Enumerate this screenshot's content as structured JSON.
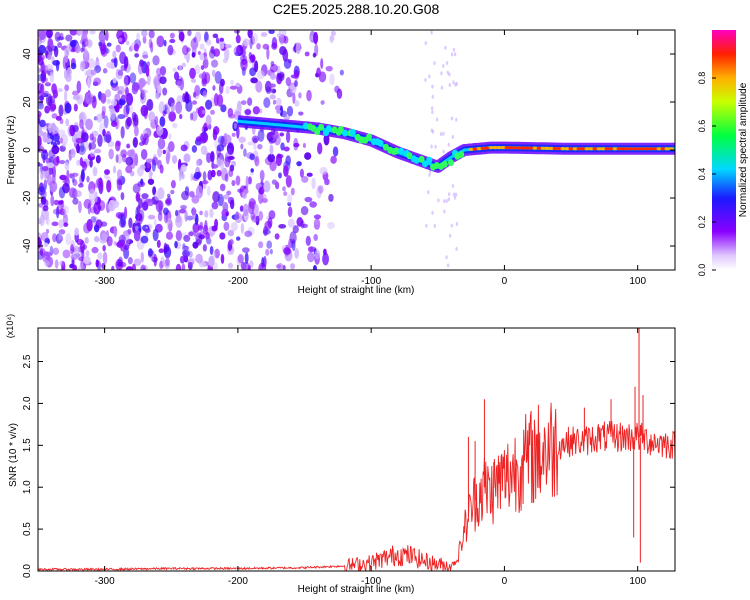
{
  "title": "C2E5.2025.288.10.20.G08",
  "chart_data": [
    {
      "type": "heatmap",
      "xlabel": "Height of straight line (km)",
      "ylabel": "Frequency (Hz)",
      "xlim": [
        -350,
        128
      ],
      "ylim": [
        -50,
        50
      ],
      "xticks": [
        -300,
        -200,
        -100,
        0,
        100
      ],
      "yticks": [
        -40,
        -20,
        0,
        20,
        40
      ],
      "colorbar": {
        "label": "Normalized spectral amplitude",
        "range": [
          0,
          1
        ],
        "ticks": [
          "0.0",
          "0.2",
          "0.4",
          "0.6",
          "0.8"
        ]
      },
      "ridge": {
        "x": [
          -200,
          -160,
          -140,
          -120,
          -100,
          -80,
          -60,
          -50,
          -40,
          -30,
          -20,
          -10,
          0,
          50,
          100,
          128
        ],
        "y": [
          12,
          10,
          9,
          7,
          4,
          -1,
          -5,
          -7,
          -3,
          0,
          0.5,
          1,
          1,
          0.5,
          0.5,
          0.5
        ]
      }
    },
    {
      "type": "line",
      "xlabel": "Height of straight line (km)",
      "ylabel": "SNR (10 * v/v)",
      "scale_label": "(x10⁴)",
      "xlim": [
        -350,
        128
      ],
      "ylim": [
        0,
        2.9
      ],
      "xticks": [
        -300,
        -200,
        -100,
        0,
        100
      ],
      "yticks": [
        "0.0",
        "0.5",
        "1.0",
        "1.5",
        "2.0",
        "2.5"
      ],
      "color": "#ee2222",
      "series": [
        {
          "name": "SNR",
          "x": [
            -350,
            -300,
            -250,
            -200,
            -150,
            -120,
            -100,
            -90,
            -80,
            -70,
            -60,
            -50,
            -40,
            -35,
            -30,
            -25,
            -20,
            -15,
            -10,
            -5,
            0,
            10,
            20,
            30,
            40,
            50,
            60,
            70,
            80,
            90,
            100,
            110,
            120,
            128
          ],
          "y": [
            0.02,
            0.02,
            0.03,
            0.03,
            0.04,
            0.06,
            0.1,
            0.15,
            0.2,
            0.18,
            0.12,
            0.08,
            0.06,
            0.15,
            0.5,
            0.75,
            0.9,
            1.0,
            0.95,
            1.05,
            1.1,
            1.25,
            1.35,
            1.45,
            1.5,
            1.55,
            1.55,
            1.6,
            1.6,
            1.6,
            1.6,
            1.55,
            1.52,
            1.5
          ]
        }
      ],
      "spikes": [
        {
          "x": -27,
          "y": 1.6
        },
        {
          "x": -22,
          "y": 1.55
        },
        {
          "x": -15,
          "y": 2.05
        },
        {
          "x": -8,
          "y": 1.3
        },
        {
          "x": 60,
          "y": 1.95
        },
        {
          "x": 80,
          "y": 2.05
        },
        {
          "x": 98,
          "y": 2.2
        },
        {
          "x": 101,
          "y": 2.9
        },
        {
          "x": 104,
          "y": 2.1
        }
      ],
      "dips": [
        {
          "x": 102,
          "y": 0.1
        },
        {
          "x": 97,
          "y": 0.4
        }
      ]
    }
  ]
}
